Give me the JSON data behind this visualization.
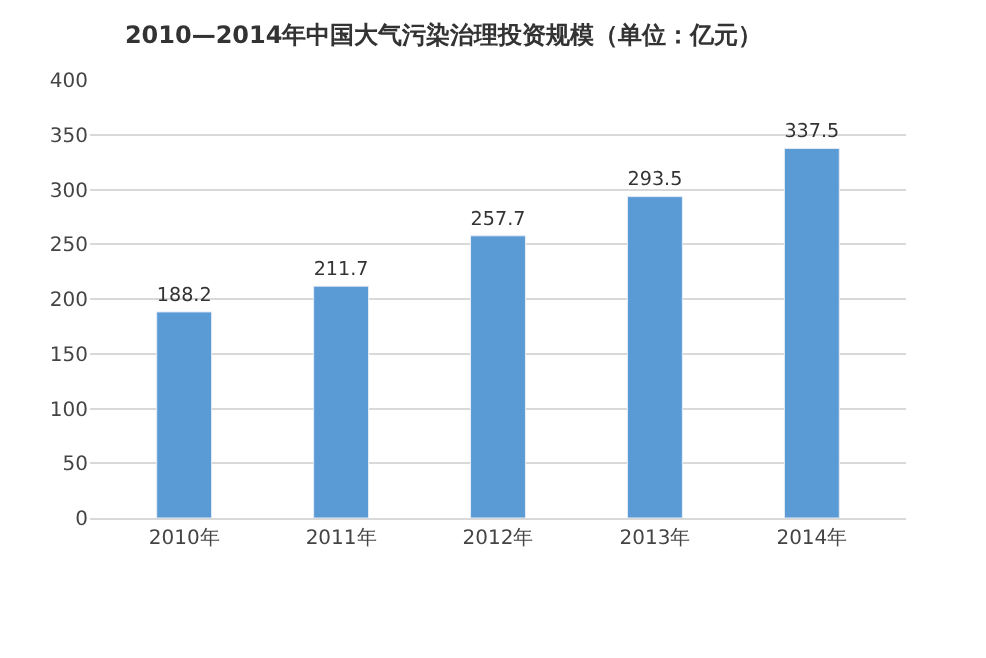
{
  "chart_data": {
    "type": "bar",
    "title": "2010—2014年中国大气污染治理投资规模（单位：亿元）",
    "categories": [
      "2010年",
      "2011年",
      "2012年",
      "2013年",
      "2014年"
    ],
    "values": [
      188.2,
      211.7,
      257.7,
      293.5,
      337.5
    ],
    "color": "#5b9bd5",
    "data_labels": true,
    "ylim": [
      0,
      400
    ],
    "yticks": [
      0,
      50,
      100,
      150,
      200,
      250,
      300,
      350,
      400
    ],
    "grid": "y",
    "legend": false
  }
}
